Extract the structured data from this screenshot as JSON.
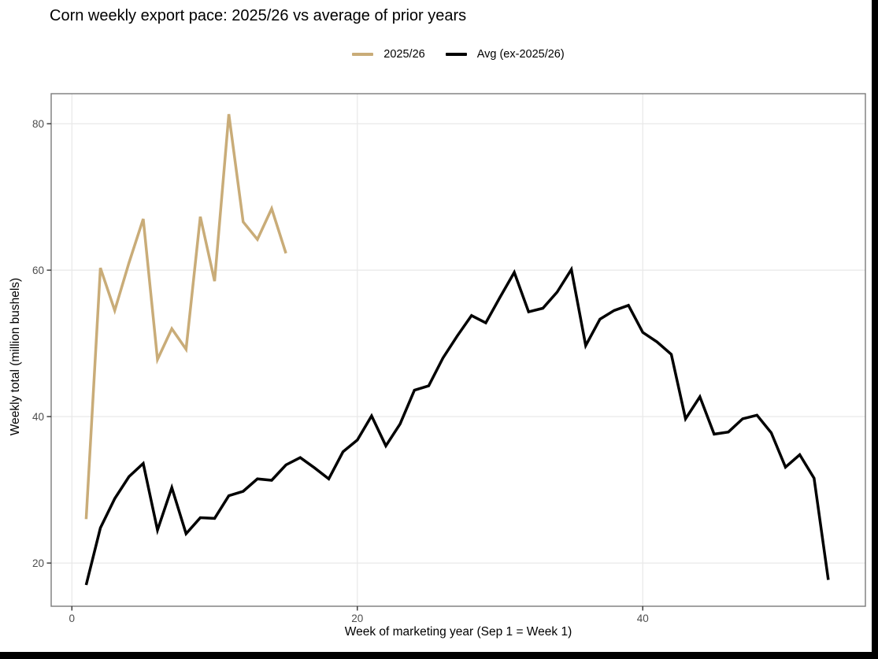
{
  "chart_data": {
    "type": "line",
    "title": "Corn weekly export pace: 2025/26 vs average of prior years",
    "xlabel": "Week of marketing year (Sep 1 = Week 1)",
    "ylabel": "Weekly total (million bushels)",
    "x_ticks": [
      0,
      20,
      40
    ],
    "y_ticks": [
      20,
      40,
      60,
      80
    ],
    "xlim": [
      -1.45,
      55.6
    ],
    "ylim": [
      14.1,
      84.1
    ],
    "grid": true,
    "legend_position": "top-center",
    "colors": {
      "gridline": "#E8E8E8",
      "panel_border": "#7A7A7A",
      "tick_mark": "#333333",
      "tick_label": "#4D4D4D"
    },
    "series": [
      {
        "name": "2025/26",
        "color": "#C9AC78",
        "line_width": 3.5,
        "x": [
          1,
          2,
          3,
          4,
          5,
          6,
          7,
          8,
          9,
          10,
          11,
          12,
          13,
          14,
          15
        ],
        "values": [
          26,
          60.3,
          54.5,
          61,
          67,
          47.8,
          52,
          49.2,
          67.3,
          58.5,
          81.3,
          66.6,
          64.2,
          68.4,
          62.3
        ]
      },
      {
        "name": "Avg (ex-2025/26)",
        "color": "#000000",
        "line_width": 3.5,
        "x": [
          1,
          2,
          3,
          4,
          5,
          6,
          7,
          8,
          9,
          10,
          11,
          12,
          13,
          14,
          15,
          16,
          17,
          18,
          19,
          20,
          21,
          22,
          23,
          24,
          25,
          26,
          27,
          28,
          29,
          30,
          31,
          32,
          33,
          34,
          35,
          36,
          37,
          38,
          39,
          40,
          41,
          42,
          43,
          44,
          45,
          46,
          47,
          48,
          49,
          50,
          51,
          52,
          53
        ],
        "values": [
          17,
          24.8,
          28.8,
          31.8,
          33.6,
          24.5,
          30.3,
          24,
          26.2,
          26.1,
          29.2,
          29.8,
          31.5,
          31.3,
          33.4,
          34.4,
          33,
          31.5,
          35.2,
          36.8,
          40.1,
          36,
          39,
          43.6,
          44.2,
          48,
          51,
          53.8,
          52.8,
          56.3,
          59.7,
          54.3,
          54.8,
          57,
          60.1,
          49.7,
          53.3,
          54.5,
          55.2,
          51.5,
          50.2,
          48.5,
          39.7,
          42.7,
          37.6,
          37.9,
          39.7,
          40.2,
          37.8,
          33.1,
          34.8,
          31.6,
          17.7
        ]
      }
    ]
  }
}
